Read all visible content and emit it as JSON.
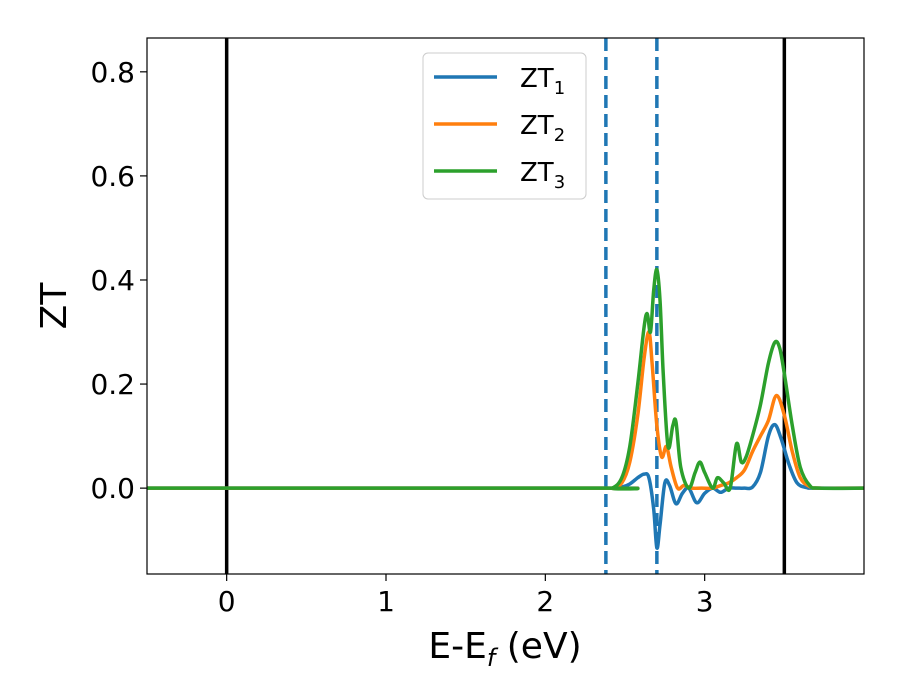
{
  "chart_data": {
    "type": "line",
    "xlabel": {
      "main": "E-E",
      "sub": "f",
      "unit": " (eV)"
    },
    "ylabel": "ZT",
    "xlim": [
      -0.5,
      4.0
    ],
    "ylim": [
      -0.165,
      0.865
    ],
    "xticks": [
      0,
      1,
      2,
      3
    ],
    "yticks": [
      0.0,
      0.2,
      0.4,
      0.6,
      0.8
    ],
    "xtick_labels": [
      "0",
      "1",
      "2",
      "3"
    ],
    "ytick_labels": [
      "0.0",
      "0.2",
      "0.4",
      "0.6",
      "0.8"
    ],
    "grid": false,
    "legend_position": "top-center",
    "vlines_solid": [
      0.0,
      3.5
    ],
    "vlines_dashed": [
      2.38,
      2.7
    ],
    "series": [
      {
        "name": "ZT",
        "subscript": "1",
        "color": "#1f77b4",
        "x": [
          -0.5,
          2.35,
          2.42,
          2.48,
          2.53,
          2.58,
          2.62,
          2.65,
          2.68,
          2.7,
          2.72,
          2.75,
          2.78,
          2.82,
          2.86,
          2.9,
          2.95,
          3.0,
          3.05,
          3.1,
          3.15,
          3.2,
          3.25,
          3.3,
          3.35,
          3.4,
          3.44,
          3.48,
          3.53,
          3.58,
          3.64,
          3.7,
          4.0
        ],
        "y": [
          0,
          0,
          0.0,
          0.002,
          0.008,
          0.02,
          0.027,
          0.02,
          -0.04,
          -0.115,
          -0.07,
          0.01,
          0.005,
          -0.03,
          -0.01,
          0.0,
          -0.028,
          -0.01,
          0.0,
          -0.008,
          0.0,
          0.0,
          0.0,
          0.002,
          0.03,
          0.1,
          0.122,
          0.095,
          0.045,
          0.01,
          0.001,
          0.0,
          0.0
        ]
      },
      {
        "name": "ZT",
        "subscript": "2",
        "color": "#ff7f0e",
        "x": [
          -0.5,
          2.35,
          2.42,
          2.48,
          2.53,
          2.58,
          2.62,
          2.65,
          2.67,
          2.7,
          2.73,
          2.76,
          2.79,
          2.83,
          2.87,
          2.92,
          2.98,
          3.05,
          3.1,
          3.15,
          3.2,
          3.25,
          3.3,
          3.35,
          3.4,
          3.45,
          3.5,
          3.55,
          3.6,
          3.66,
          3.72,
          4.0
        ],
        "y": [
          0,
          0,
          0.0,
          0.01,
          0.05,
          0.14,
          0.25,
          0.3,
          0.24,
          0.12,
          0.06,
          0.08,
          0.04,
          0.0,
          0.005,
          0.0,
          0.0,
          0.0,
          0.005,
          0.01,
          0.02,
          0.035,
          0.07,
          0.1,
          0.13,
          0.178,
          0.14,
          0.07,
          0.02,
          0.003,
          0.0,
          0.0
        ]
      },
      {
        "name": "ZT",
        "subscript": "3",
        "color": "#2ca02c",
        "x": [
          -0.5,
          2.35,
          2.42,
          2.48,
          2.53,
          2.58,
          2.62,
          2.64,
          2.66,
          2.68,
          2.7,
          2.72,
          2.74,
          2.77,
          2.8,
          2.82,
          2.85,
          2.9,
          2.94,
          2.97,
          3.0,
          3.05,
          3.08,
          3.12,
          3.16,
          3.2,
          3.23,
          3.26,
          3.3,
          3.35,
          3.4,
          3.44,
          3.47,
          3.5,
          3.55,
          3.6,
          3.66,
          3.72,
          4.0
        ],
        "y": [
          0,
          0,
          0.0,
          0.02,
          0.08,
          0.2,
          0.31,
          0.335,
          0.3,
          0.38,
          0.42,
          0.36,
          0.22,
          0.08,
          0.12,
          0.127,
          0.04,
          0.0,
          0.03,
          0.05,
          0.03,
          0.0,
          0.02,
          0.01,
          0.0,
          0.085,
          0.05,
          0.06,
          0.1,
          0.16,
          0.24,
          0.28,
          0.27,
          0.22,
          0.12,
          0.04,
          0.005,
          0.0,
          0.0
        ]
      }
    ]
  }
}
